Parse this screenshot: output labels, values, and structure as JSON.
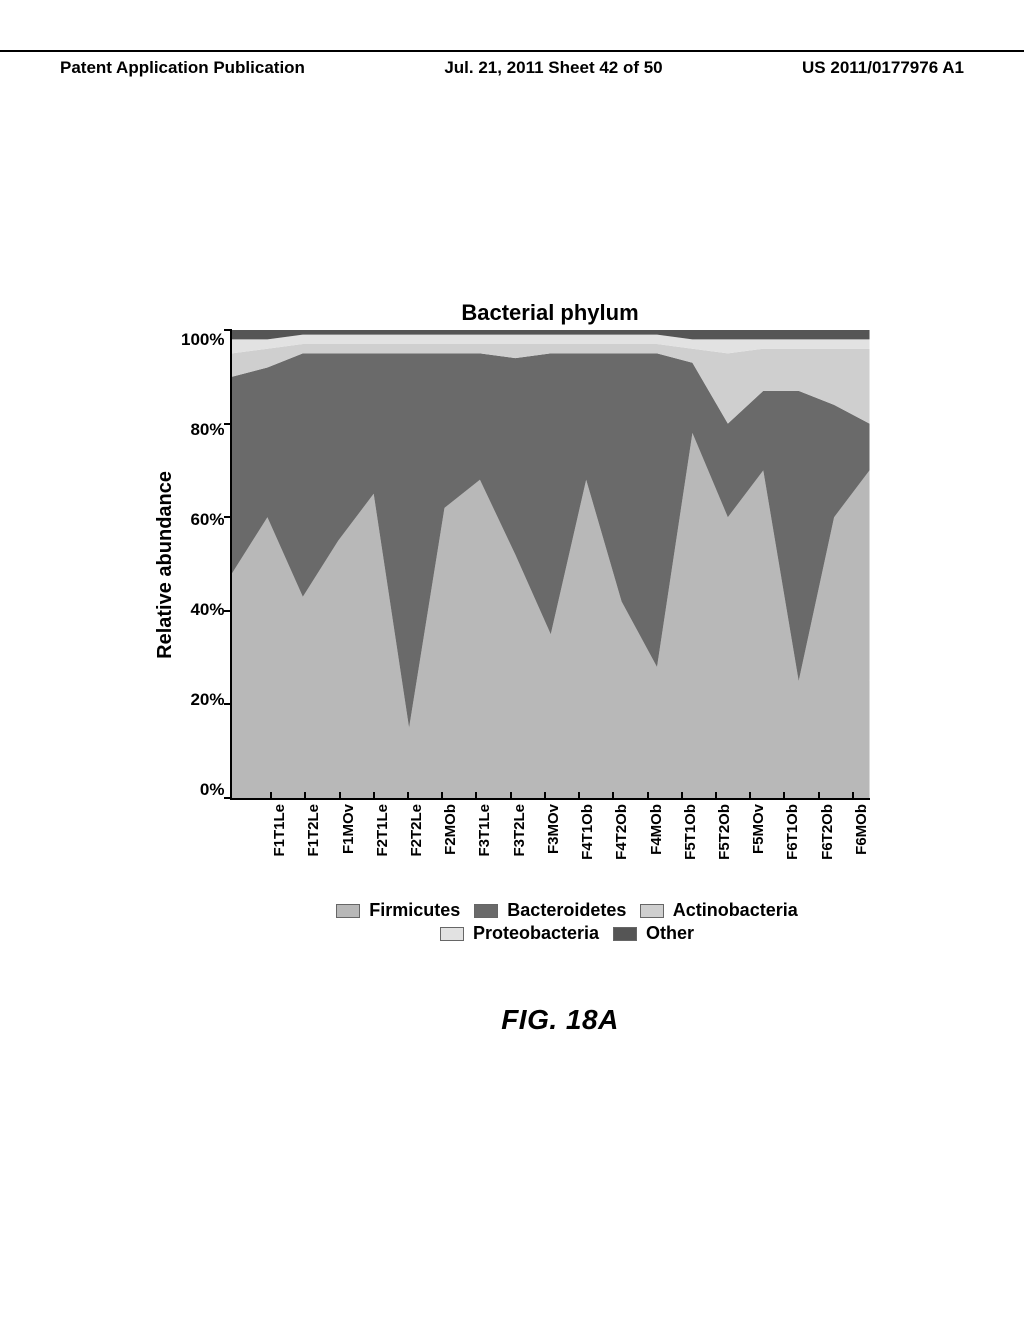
{
  "header": {
    "left": "Patent Application Publication",
    "center": "Jul. 21, 2011  Sheet 42 of 50",
    "right": "US 2011/0177976 A1"
  },
  "chart": {
    "type": "stacked-area",
    "title": "Bacterial phylum",
    "ylabel": "Relative abundance",
    "ylim": [
      0,
      100
    ],
    "yticks": [
      "100%",
      "80%",
      "60%",
      "40%",
      "20%",
      "0%"
    ],
    "categories": [
      "F1T1Le",
      "F1T2Le",
      "F1MOv",
      "F2T1Le",
      "F2T2Le",
      "F2MOb",
      "F3T1Le",
      "F3T2Le",
      "F3MOv",
      "F4T1Ob",
      "F4T2Ob",
      "F4MOb",
      "F5T1Ob",
      "F5T2Ob",
      "F5MOv",
      "F6T1Ob",
      "F6T2Ob",
      "F6MOb"
    ],
    "series": [
      {
        "name": "Firmicutes",
        "color": "#b8b8b8",
        "values": [
          48,
          60,
          43,
          55,
          65,
          15,
          62,
          68,
          52,
          35,
          68,
          42,
          28,
          78,
          60,
          70,
          25,
          60,
          70
        ]
      },
      {
        "name": "Bacteroidetes",
        "color": "#6a6a6a",
        "values": [
          42,
          32,
          52,
          40,
          30,
          80,
          33,
          27,
          42,
          60,
          27,
          53,
          67,
          15,
          20,
          17,
          62,
          24,
          10
        ]
      },
      {
        "name": "Actinobacteria",
        "color": "#cfcfcf",
        "values": [
          5,
          4,
          2,
          2,
          2,
          2,
          2,
          2,
          3,
          2,
          2,
          2,
          2,
          3,
          15,
          9,
          9,
          12,
          16
        ]
      },
      {
        "name": "Proteobacteria",
        "color": "#e2e2e2",
        "values": [
          3,
          2,
          2,
          2,
          2,
          2,
          2,
          2,
          2,
          2,
          2,
          2,
          2,
          2,
          3,
          2,
          2,
          2,
          2
        ]
      },
      {
        "name": "Other",
        "color": "#555555",
        "values": [
          2,
          2,
          1,
          1,
          1,
          1,
          1,
          1,
          1,
          1,
          1,
          1,
          1,
          2,
          2,
          2,
          2,
          2,
          2
        ]
      }
    ],
    "background": "#ffffff",
    "legend_rows": [
      [
        "Firmicutes",
        "Bacteroidetes",
        "Actinobacteria"
      ],
      [
        "Proteobacteria",
        "Other"
      ]
    ]
  },
  "caption": "FIG. 18A"
}
